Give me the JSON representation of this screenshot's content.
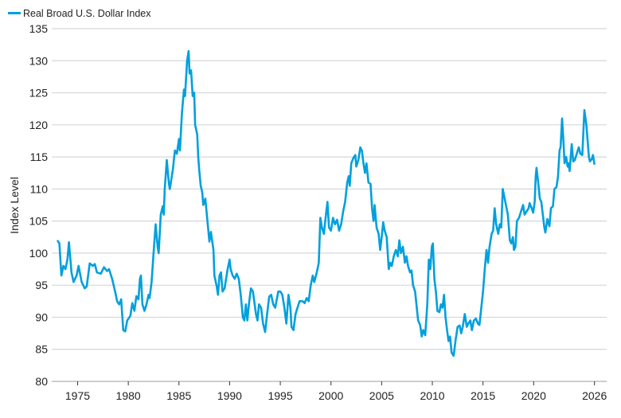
{
  "chart_data": {
    "type": "line",
    "title": "",
    "xlabel": "",
    "ylabel": "Index Level",
    "xlim": [
      1973,
      2026.3
    ],
    "ylim": [
      80,
      135
    ],
    "yticks": [
      80,
      85,
      90,
      95,
      100,
      105,
      110,
      115,
      120,
      125,
      130,
      135
    ],
    "xticks": [
      1975,
      1980,
      1985,
      1990,
      1995,
      2000,
      2005,
      2010,
      2015,
      2020,
      2026
    ],
    "grid": "horizontal",
    "legend_placement": "top-left",
    "series": [
      {
        "name": "Real Broad U.S. Dollar Index",
        "color": "#00a0dd",
        "points": [
          [
            1973.0,
            102
          ],
          [
            1973.2,
            101.5
          ],
          [
            1973.4,
            96.5
          ],
          [
            1973.6,
            98
          ],
          [
            1973.8,
            97.5
          ],
          [
            1974.0,
            99
          ],
          [
            1974.15,
            101.7
          ],
          [
            1974.4,
            97
          ],
          [
            1974.6,
            95.5
          ],
          [
            1974.9,
            96.5
          ],
          [
            1975.1,
            98
          ],
          [
            1975.4,
            95.5
          ],
          [
            1975.7,
            94.5
          ],
          [
            1975.9,
            94.8
          ],
          [
            1976.2,
            98.4
          ],
          [
            1976.5,
            98
          ],
          [
            1976.7,
            98.3
          ],
          [
            1976.9,
            97
          ],
          [
            1977.3,
            96.8
          ],
          [
            1977.6,
            97.8
          ],
          [
            1977.9,
            97.2
          ],
          [
            1978.1,
            97.5
          ],
          [
            1978.4,
            96
          ],
          [
            1978.7,
            94
          ],
          [
            1978.9,
            92.5
          ],
          [
            1979.1,
            92
          ],
          [
            1979.3,
            92.8
          ],
          [
            1979.5,
            88
          ],
          [
            1979.7,
            87.8
          ],
          [
            1979.9,
            89.5
          ],
          [
            1980.2,
            90.2
          ],
          [
            1980.4,
            92.2
          ],
          [
            1980.6,
            91
          ],
          [
            1980.8,
            93.3
          ],
          [
            1981.0,
            92.8
          ],
          [
            1981.15,
            96
          ],
          [
            1981.25,
            96.5
          ],
          [
            1981.4,
            92
          ],
          [
            1981.6,
            91
          ],
          [
            1981.8,
            92
          ],
          [
            1982.0,
            93.5
          ],
          [
            1982.1,
            93
          ],
          [
            1982.3,
            95.5
          ],
          [
            1982.5,
            100
          ],
          [
            1982.7,
            104.5
          ],
          [
            1982.9,
            101
          ],
          [
            1983.0,
            100
          ],
          [
            1983.2,
            106
          ],
          [
            1983.4,
            107.3
          ],
          [
            1983.5,
            106
          ],
          [
            1983.6,
            110
          ],
          [
            1983.8,
            114.5
          ],
          [
            1984.0,
            111
          ],
          [
            1984.1,
            110
          ],
          [
            1984.4,
            113
          ],
          [
            1984.6,
            116
          ],
          [
            1984.8,
            115.5
          ],
          [
            1985.0,
            117.8
          ],
          [
            1985.1,
            116
          ],
          [
            1985.3,
            122
          ],
          [
            1985.5,
            125.5
          ],
          [
            1985.6,
            124.5
          ],
          [
            1985.8,
            130
          ],
          [
            1985.95,
            131.5
          ],
          [
            1986.05,
            128
          ],
          [
            1986.2,
            128.5
          ],
          [
            1986.35,
            124.5
          ],
          [
            1986.5,
            125
          ],
          [
            1986.6,
            120
          ],
          [
            1986.8,
            118.5
          ],
          [
            1986.9,
            115
          ],
          [
            1987.0,
            113
          ],
          [
            1987.15,
            110.5
          ],
          [
            1987.3,
            109.5
          ],
          [
            1987.4,
            107.5
          ],
          [
            1987.6,
            108.5
          ],
          [
            1987.75,
            106
          ],
          [
            1987.9,
            103.5
          ],
          [
            1988.0,
            101.8
          ],
          [
            1988.15,
            103.3
          ],
          [
            1988.4,
            100.5
          ],
          [
            1988.5,
            96.5
          ],
          [
            1988.7,
            95
          ],
          [
            1988.85,
            93.5
          ],
          [
            1989.0,
            96.5
          ],
          [
            1989.15,
            97
          ],
          [
            1989.3,
            94
          ],
          [
            1989.5,
            94.5
          ],
          [
            1989.8,
            97.5
          ],
          [
            1990.0,
            99
          ],
          [
            1990.1,
            97.5
          ],
          [
            1990.3,
            96.5
          ],
          [
            1990.5,
            96
          ],
          [
            1990.7,
            96.8
          ],
          [
            1990.9,
            96
          ],
          [
            1991.1,
            93.5
          ],
          [
            1991.3,
            90
          ],
          [
            1991.45,
            89.5
          ],
          [
            1991.6,
            92
          ],
          [
            1991.75,
            89.5
          ],
          [
            1991.9,
            92
          ],
          [
            1992.1,
            94.5
          ],
          [
            1992.3,
            94
          ],
          [
            1992.6,
            90.5
          ],
          [
            1992.75,
            89.5
          ],
          [
            1992.9,
            92
          ],
          [
            1993.1,
            91.5
          ],
          [
            1993.3,
            89
          ],
          [
            1993.5,
            87.7
          ],
          [
            1993.7,
            90.5
          ],
          [
            1993.9,
            93.2
          ],
          [
            1994.1,
            93.5
          ],
          [
            1994.3,
            92
          ],
          [
            1994.5,
            91.5
          ],
          [
            1994.8,
            94
          ],
          [
            1995.0,
            94
          ],
          [
            1995.2,
            93.5
          ],
          [
            1995.4,
            91.5
          ],
          [
            1995.6,
            89
          ],
          [
            1995.8,
            93.5
          ],
          [
            1996.0,
            91.5
          ],
          [
            1996.1,
            88.5
          ],
          [
            1996.3,
            88
          ],
          [
            1996.5,
            90.5
          ],
          [
            1996.7,
            91.5
          ],
          [
            1996.9,
            92.5
          ],
          [
            1997.2,
            92.5
          ],
          [
            1997.4,
            92.2
          ],
          [
            1997.6,
            93
          ],
          [
            1997.8,
            92.5
          ],
          [
            1998.0,
            95
          ],
          [
            1998.2,
            96.5
          ],
          [
            1998.35,
            95.5
          ],
          [
            1998.6,
            97
          ],
          [
            1998.8,
            98.5
          ],
          [
            1998.95,
            105.5
          ],
          [
            1999.1,
            104
          ],
          [
            1999.3,
            103
          ],
          [
            1999.5,
            106
          ],
          [
            1999.65,
            108
          ],
          [
            1999.8,
            104
          ],
          [
            2000.0,
            103.5
          ],
          [
            2000.2,
            105.5
          ],
          [
            2000.4,
            104.5
          ],
          [
            2000.6,
            105.2
          ],
          [
            2000.8,
            103.5
          ],
          [
            2001.0,
            104.5
          ],
          [
            2001.2,
            106.5
          ],
          [
            2001.4,
            108
          ],
          [
            2001.6,
            111
          ],
          [
            2001.75,
            112
          ],
          [
            2001.85,
            110.5
          ],
          [
            2002.0,
            114
          ],
          [
            2002.2,
            114.8
          ],
          [
            2002.4,
            115.3
          ],
          [
            2002.5,
            113.5
          ],
          [
            2002.7,
            114.5
          ],
          [
            2002.9,
            116.5
          ],
          [
            2003.05,
            116
          ],
          [
            2003.2,
            114
          ],
          [
            2003.35,
            112.5
          ],
          [
            2003.5,
            114
          ],
          [
            2003.7,
            111
          ],
          [
            2003.9,
            110.8
          ],
          [
            2004.05,
            107
          ],
          [
            2004.2,
            105
          ],
          [
            2004.3,
            107.5
          ],
          [
            2004.5,
            104
          ],
          [
            2004.7,
            103
          ],
          [
            2004.85,
            100.5
          ],
          [
            2005.0,
            102.5
          ],
          [
            2005.15,
            104.8
          ],
          [
            2005.3,
            103.5
          ],
          [
            2005.5,
            102.5
          ],
          [
            2005.7,
            97.5
          ],
          [
            2005.85,
            98.5
          ],
          [
            2006.0,
            98
          ],
          [
            2006.2,
            99.5
          ],
          [
            2006.4,
            100.5
          ],
          [
            2006.6,
            99.5
          ],
          [
            2006.75,
            102
          ],
          [
            2006.9,
            100
          ],
          [
            2007.1,
            101
          ],
          [
            2007.3,
            98.5
          ],
          [
            2007.45,
            99.5
          ],
          [
            2007.6,
            98
          ],
          [
            2007.8,
            97
          ],
          [
            2007.95,
            97.3
          ],
          [
            2008.1,
            95
          ],
          [
            2008.3,
            94
          ],
          [
            2008.5,
            91
          ],
          [
            2008.6,
            89.5
          ],
          [
            2008.8,
            88.8
          ],
          [
            2008.95,
            87
          ],
          [
            2009.1,
            88
          ],
          [
            2009.3,
            87.2
          ],
          [
            2009.5,
            92
          ],
          [
            2009.65,
            99
          ],
          [
            2009.8,
            97.5
          ],
          [
            2009.95,
            101
          ],
          [
            2010.05,
            101.5
          ],
          [
            2010.2,
            96
          ],
          [
            2010.35,
            94
          ],
          [
            2010.5,
            91
          ],
          [
            2010.7,
            90.8
          ],
          [
            2010.85,
            92
          ],
          [
            2011.0,
            91.5
          ],
          [
            2011.15,
            93.5
          ],
          [
            2011.3,
            90
          ],
          [
            2011.45,
            88
          ],
          [
            2011.6,
            86.3
          ],
          [
            2011.75,
            87
          ],
          [
            2011.9,
            84.5
          ],
          [
            2012.1,
            84
          ],
          [
            2012.3,
            86.5
          ],
          [
            2012.5,
            88.5
          ],
          [
            2012.7,
            88.7
          ],
          [
            2012.85,
            87.5
          ],
          [
            2013.0,
            88.5
          ],
          [
            2013.2,
            90.5
          ],
          [
            2013.4,
            88.5
          ],
          [
            2013.55,
            89
          ],
          [
            2013.75,
            89.5
          ],
          [
            2013.9,
            88
          ],
          [
            2014.1,
            89.5
          ],
          [
            2014.3,
            89.8
          ],
          [
            2014.5,
            89
          ],
          [
            2014.65,
            88.8
          ],
          [
            2014.8,
            91
          ],
          [
            2015.0,
            94
          ],
          [
            2015.2,
            98
          ],
          [
            2015.35,
            100.5
          ],
          [
            2015.5,
            98.5
          ],
          [
            2015.65,
            101
          ],
          [
            2015.85,
            103
          ],
          [
            2016.0,
            103.5
          ],
          [
            2016.15,
            107
          ],
          [
            2016.3,
            104.5
          ],
          [
            2016.5,
            103
          ],
          [
            2016.65,
            104.5
          ],
          [
            2016.8,
            104
          ],
          [
            2016.95,
            110
          ],
          [
            2017.2,
            108
          ],
          [
            2017.45,
            106
          ],
          [
            2017.65,
            102
          ],
          [
            2017.8,
            101.5
          ],
          [
            2017.95,
            102.5
          ],
          [
            2018.05,
            100.5
          ],
          [
            2018.2,
            101
          ],
          [
            2018.35,
            105
          ],
          [
            2018.55,
            105.5
          ],
          [
            2018.75,
            106.5
          ],
          [
            2018.95,
            107.5
          ],
          [
            2019.1,
            106
          ],
          [
            2019.3,
            106.5
          ],
          [
            2019.5,
            107
          ],
          [
            2019.6,
            107.8
          ],
          [
            2019.8,
            107
          ],
          [
            2019.95,
            106.3
          ],
          [
            2020.1,
            108
          ],
          [
            2020.2,
            112
          ],
          [
            2020.28,
            113.3
          ],
          [
            2020.45,
            111
          ],
          [
            2020.6,
            108.5
          ],
          [
            2020.75,
            108
          ],
          [
            2020.9,
            106
          ],
          [
            2021.05,
            104
          ],
          [
            2021.15,
            103.2
          ],
          [
            2021.35,
            105.3
          ],
          [
            2021.55,
            104.2
          ],
          [
            2021.7,
            107
          ],
          [
            2021.9,
            107.3
          ],
          [
            2022.05,
            110
          ],
          [
            2022.25,
            110.3
          ],
          [
            2022.4,
            112
          ],
          [
            2022.55,
            116
          ],
          [
            2022.65,
            116.5
          ],
          [
            2022.8,
            121
          ],
          [
            2022.95,
            117
          ],
          [
            2023.05,
            114
          ],
          [
            2023.2,
            115
          ],
          [
            2023.35,
            113.5
          ],
          [
            2023.45,
            114
          ],
          [
            2023.55,
            112.8
          ],
          [
            2023.75,
            117
          ],
          [
            2023.9,
            114.3
          ],
          [
            2024.05,
            114.5
          ],
          [
            2024.25,
            115.5
          ],
          [
            2024.45,
            116.5
          ],
          [
            2024.6,
            115.5
          ],
          [
            2024.8,
            115.3
          ],
          [
            2025.0,
            122.3
          ],
          [
            2025.2,
            120
          ],
          [
            2025.45,
            115
          ],
          [
            2025.55,
            114.3
          ],
          [
            2025.75,
            114.7
          ],
          [
            2025.85,
            115.3
          ],
          [
            2026.0,
            113.8
          ]
        ]
      }
    ]
  }
}
